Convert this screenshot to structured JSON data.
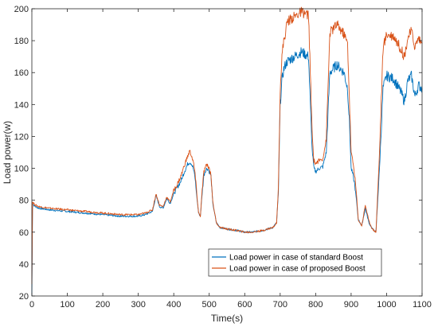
{
  "chart_data": {
    "type": "line",
    "title": "",
    "xlabel": "Time(s)",
    "ylabel": "Load power(w)",
    "xlim": [
      0,
      1100
    ],
    "ylim": [
      20,
      200
    ],
    "xticks": [
      0,
      100,
      200,
      300,
      400,
      500,
      600,
      700,
      800,
      900,
      1000,
      1100
    ],
    "yticks": [
      20,
      40,
      60,
      80,
      100,
      120,
      140,
      160,
      180,
      200
    ],
    "grid": false,
    "legend_position": "bottom-right",
    "series": [
      {
        "name": "Load power in case of standard Boost",
        "color": "#0072BD",
        "x": [
          0,
          2,
          5,
          10,
          20,
          50,
          100,
          150,
          200,
          250,
          300,
          320,
          340,
          350,
          360,
          370,
          380,
          390,
          400,
          410,
          420,
          430,
          440,
          445,
          450,
          455,
          460,
          465,
          470,
          475,
          480,
          485,
          490,
          495,
          500,
          505,
          510,
          520,
          530,
          550,
          580,
          600,
          620,
          650,
          680,
          690,
          695,
          700,
          705,
          710,
          715,
          720,
          740,
          760,
          780,
          785,
          790,
          795,
          800,
          810,
          820,
          830,
          840,
          860,
          880,
          890,
          895,
          900,
          905,
          910,
          915,
          920,
          930,
          940,
          950,
          960,
          965,
          970,
          980,
          990,
          1000,
          1020,
          1040,
          1050,
          1060,
          1070,
          1080,
          1090,
          1100
        ],
        "y": [
          20,
          78,
          77,
          76,
          75,
          74,
          73,
          72,
          71,
          70,
          70,
          71,
          73,
          83,
          76,
          75,
          81,
          78,
          84,
          88,
          92,
          98,
          103,
          104,
          103,
          100,
          94,
          82,
          72,
          70,
          84,
          96,
          99,
          100,
          98,
          95,
          78,
          66,
          63,
          62,
          61,
          60,
          60,
          61,
          63,
          66,
          85,
          140,
          155,
          162,
          165,
          167,
          170,
          173,
          170,
          140,
          112,
          100,
          98,
          100,
          101,
          110,
          160,
          165,
          160,
          150,
          130,
          100,
          96,
          90,
          80,
          68,
          64,
          75,
          66,
          62,
          61,
          60,
          100,
          150,
          158,
          156,
          148,
          142,
          155,
          158,
          145,
          152,
          150
        ]
      },
      {
        "name": "Load power in case of proposed Boost",
        "color": "#D95319",
        "x": [
          0,
          2,
          5,
          10,
          20,
          50,
          100,
          150,
          200,
          250,
          300,
          320,
          340,
          350,
          360,
          370,
          380,
          390,
          400,
          410,
          420,
          430,
          440,
          445,
          450,
          455,
          460,
          465,
          470,
          475,
          480,
          485,
          490,
          495,
          500,
          505,
          510,
          520,
          530,
          550,
          580,
          600,
          620,
          650,
          680,
          690,
          695,
          700,
          705,
          710,
          715,
          720,
          740,
          760,
          780,
          785,
          790,
          795,
          800,
          810,
          820,
          830,
          840,
          860,
          880,
          890,
          895,
          900,
          905,
          910,
          915,
          920,
          930,
          940,
          950,
          960,
          965,
          970,
          980,
          990,
          1000,
          1020,
          1040,
          1050,
          1060,
          1070,
          1080,
          1090,
          1100
        ],
        "y": [
          28,
          79,
          78,
          77,
          76,
          75,
          74,
          73,
          72,
          71,
          71,
          72,
          74,
          84,
          77,
          76,
          82,
          79,
          86,
          90,
          95,
          102,
          108,
          111,
          108,
          104,
          97,
          84,
          72,
          70,
          86,
          98,
          101,
          102,
          100,
          96,
          79,
          66,
          63,
          62,
          61,
          60,
          60,
          61,
          63,
          66,
          88,
          150,
          170,
          180,
          185,
          192,
          195,
          198,
          196,
          160,
          122,
          105,
          103,
          105,
          106,
          118,
          185,
          190,
          184,
          178,
          145,
          110,
          104,
          96,
          84,
          68,
          64,
          77,
          67,
          62,
          61,
          60,
          110,
          175,
          184,
          183,
          175,
          170,
          182,
          186,
          176,
          182,
          178
        ]
      }
    ]
  }
}
